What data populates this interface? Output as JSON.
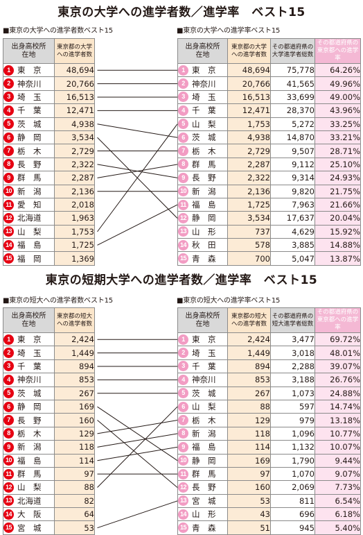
{
  "section1": {
    "title": "東京の大学への進学者数／進学率　ベスト15",
    "left_subtitle": "■東京の大学への進学者数ベスト15",
    "right_subtitle": "■東京の大学への進学率ベスト15",
    "left_headers": {
      "place": "出身高校所在地",
      "count": "東京都の大学への進学者数"
    },
    "right_headers": {
      "place": "出身高校所在地",
      "count": "東京都の大学への進学者数",
      "total": "その都道府県の大学進学者総数",
      "rate": "その都道府県の東京都への進学率"
    },
    "left_rows": [
      {
        "rank": "1",
        "place": "東　京",
        "count": "48,694"
      },
      {
        "rank": "2",
        "place": "神奈川",
        "count": "20,766"
      },
      {
        "rank": "3",
        "place": "埼　玉",
        "count": "16,513"
      },
      {
        "rank": "4",
        "place": "千　葉",
        "count": "12,471"
      },
      {
        "rank": "5",
        "place": "茨　城",
        "count": "4,938"
      },
      {
        "rank": "6",
        "place": "静　岡",
        "count": "3,534"
      },
      {
        "rank": "7",
        "place": "栃　木",
        "count": "2,729"
      },
      {
        "rank": "8",
        "place": "長　野",
        "count": "2,322"
      },
      {
        "rank": "9",
        "place": "群　馬",
        "count": "2,287"
      },
      {
        "rank": "10",
        "place": "新　潟",
        "count": "2,136"
      },
      {
        "rank": "11",
        "place": "愛　知",
        "count": "2,018"
      },
      {
        "rank": "12",
        "place": "北海道",
        "count": "1,963"
      },
      {
        "rank": "13",
        "place": "山　梨",
        "count": "1,753"
      },
      {
        "rank": "14",
        "place": "福　島",
        "count": "1,725"
      },
      {
        "rank": "15",
        "place": "福　岡",
        "count": "1,369"
      }
    ],
    "right_rows": [
      {
        "rank": "1",
        "place": "東　京",
        "count": "48,694",
        "total": "75,778",
        "rate": "64.26%"
      },
      {
        "rank": "2",
        "place": "神奈川",
        "count": "20,766",
        "total": "41,565",
        "rate": "49.96%"
      },
      {
        "rank": "3",
        "place": "埼　玉",
        "count": "16,513",
        "total": "33,699",
        "rate": "49.00%"
      },
      {
        "rank": "4",
        "place": "千　葉",
        "count": "12,471",
        "total": "28,370",
        "rate": "43.96%"
      },
      {
        "rank": "5",
        "place": "山　梨",
        "count": "1,753",
        "total": "5,272",
        "rate": "33.25%"
      },
      {
        "rank": "6",
        "place": "茨　城",
        "count": "4,938",
        "total": "14,870",
        "rate": "33.21%"
      },
      {
        "rank": "7",
        "place": "栃　木",
        "count": "2,729",
        "total": "9,507",
        "rate": "28.71%"
      },
      {
        "rank": "8",
        "place": "群　馬",
        "count": "2,287",
        "total": "9,112",
        "rate": "25.10%"
      },
      {
        "rank": "9",
        "place": "長　野",
        "count": "2,322",
        "total": "9,314",
        "rate": "24.93%"
      },
      {
        "rank": "10",
        "place": "新　潟",
        "count": "2,136",
        "total": "9,820",
        "rate": "21.75%"
      },
      {
        "rank": "11",
        "place": "福　島",
        "count": "1,725",
        "total": "7,963",
        "rate": "21.66%"
      },
      {
        "rank": "12",
        "place": "静　岡",
        "count": "3,534",
        "total": "17,637",
        "rate": "20.04%"
      },
      {
        "rank": "13",
        "place": "山　形",
        "count": "737",
        "total": "4,629",
        "rate": "15.92%"
      },
      {
        "rank": "14",
        "place": "秋　田",
        "count": "578",
        "total": "3,885",
        "rate": "14.88%"
      },
      {
        "rank": "15",
        "place": "青　森",
        "count": "700",
        "total": "5,047",
        "rate": "13.87%"
      }
    ],
    "links": [
      [
        1,
        1
      ],
      [
        2,
        2
      ],
      [
        3,
        3
      ],
      [
        4,
        4
      ],
      [
        5,
        6
      ],
      [
        6,
        12
      ],
      [
        7,
        7
      ],
      [
        8,
        9
      ],
      [
        9,
        8
      ],
      [
        10,
        10
      ],
      [
        13,
        5
      ],
      [
        14,
        11
      ]
    ]
  },
  "section2": {
    "title": "東京の短期大学への進学者数／進学率　ベスト15",
    "left_subtitle": "■東京の短大への進学者数ベスト15",
    "right_subtitle": "■東京の短大への進学率ベスト15",
    "left_headers": {
      "place": "出身高校所在地",
      "count": "東京都の短大への進学者数"
    },
    "right_headers": {
      "place": "出身高校所在地",
      "count": "東京都の短大への進学者数",
      "total": "その都道府県の短大進学者総数",
      "rate": "その都道府県の東京都への進学率"
    },
    "left_rows": [
      {
        "rank": "1",
        "place": "東　京",
        "count": "2,424"
      },
      {
        "rank": "2",
        "place": "埼　玉",
        "count": "1,449"
      },
      {
        "rank": "3",
        "place": "千　葉",
        "count": "894"
      },
      {
        "rank": "4",
        "place": "神奈川",
        "count": "853"
      },
      {
        "rank": "5",
        "place": "茨　城",
        "count": "267"
      },
      {
        "rank": "6",
        "place": "静　岡",
        "count": "169"
      },
      {
        "rank": "7",
        "place": "長　野",
        "count": "160"
      },
      {
        "rank": "8",
        "place": "栃　木",
        "count": "129"
      },
      {
        "rank": "9",
        "place": "新　潟",
        "count": "118"
      },
      {
        "rank": "10",
        "place": "福　島",
        "count": "114"
      },
      {
        "rank": "11",
        "place": "群　馬",
        "count": "97"
      },
      {
        "rank": "12",
        "place": "山　梨",
        "count": "88"
      },
      {
        "rank": "13",
        "place": "北海道",
        "count": "82"
      },
      {
        "rank": "14",
        "place": "大　阪",
        "count": "64"
      },
      {
        "rank": "15",
        "place": "宮　城",
        "count": "53"
      }
    ],
    "right_rows": [
      {
        "rank": "1",
        "place": "東　京",
        "count": "2,424",
        "total": "3,477",
        "rate": "69.72%"
      },
      {
        "rank": "2",
        "place": "埼　玉",
        "count": "1,449",
        "total": "3,018",
        "rate": "48.01%"
      },
      {
        "rank": "3",
        "place": "千　葉",
        "count": "894",
        "total": "2,288",
        "rate": "39.07%"
      },
      {
        "rank": "4",
        "place": "神奈川",
        "count": "853",
        "total": "3,188",
        "rate": "26.76%"
      },
      {
        "rank": "5",
        "place": "茨　城",
        "count": "267",
        "total": "1,073",
        "rate": "24.88%"
      },
      {
        "rank": "6",
        "place": "山　梨",
        "count": "88",
        "total": "597",
        "rate": "14.74%"
      },
      {
        "rank": "7",
        "place": "栃　木",
        "count": "129",
        "total": "979",
        "rate": "13.18%"
      },
      {
        "rank": "8",
        "place": "新　潟",
        "count": "118",
        "total": "1,096",
        "rate": "10.77%"
      },
      {
        "rank": "9",
        "place": "福　島",
        "count": "114",
        "total": "1,132",
        "rate": "10.07%"
      },
      {
        "rank": "10",
        "place": "静　岡",
        "count": "169",
        "total": "1,790",
        "rate": "9.44%"
      },
      {
        "rank": "11",
        "place": "群　馬",
        "count": "97",
        "total": "1,070",
        "rate": "9.07%"
      },
      {
        "rank": "12",
        "place": "長　野",
        "count": "160",
        "total": "2,069",
        "rate": "7.73%"
      },
      {
        "rank": "13",
        "place": "宮　城",
        "count": "53",
        "total": "811",
        "rate": "6.54%"
      },
      {
        "rank": "14",
        "place": "山　形",
        "count": "43",
        "total": "696",
        "rate": "6.18%"
      },
      {
        "rank": "15",
        "place": "青　森",
        "count": "51",
        "total": "945",
        "rate": "5.40%"
      }
    ],
    "links": [
      [
        1,
        1
      ],
      [
        2,
        2
      ],
      [
        3,
        3
      ],
      [
        4,
        4
      ],
      [
        5,
        5
      ],
      [
        6,
        10
      ],
      [
        7,
        12
      ],
      [
        8,
        7
      ],
      [
        9,
        8
      ],
      [
        10,
        9
      ],
      [
        11,
        11
      ],
      [
        12,
        6
      ],
      [
        15,
        13
      ]
    ]
  },
  "colors": {
    "badge_left": "#e60012",
    "badge_right": "#f29cc3",
    "count_bg": "#fcebd6",
    "rate_bg": "#fde3ef",
    "rate_header": "#f4b8d4"
  }
}
